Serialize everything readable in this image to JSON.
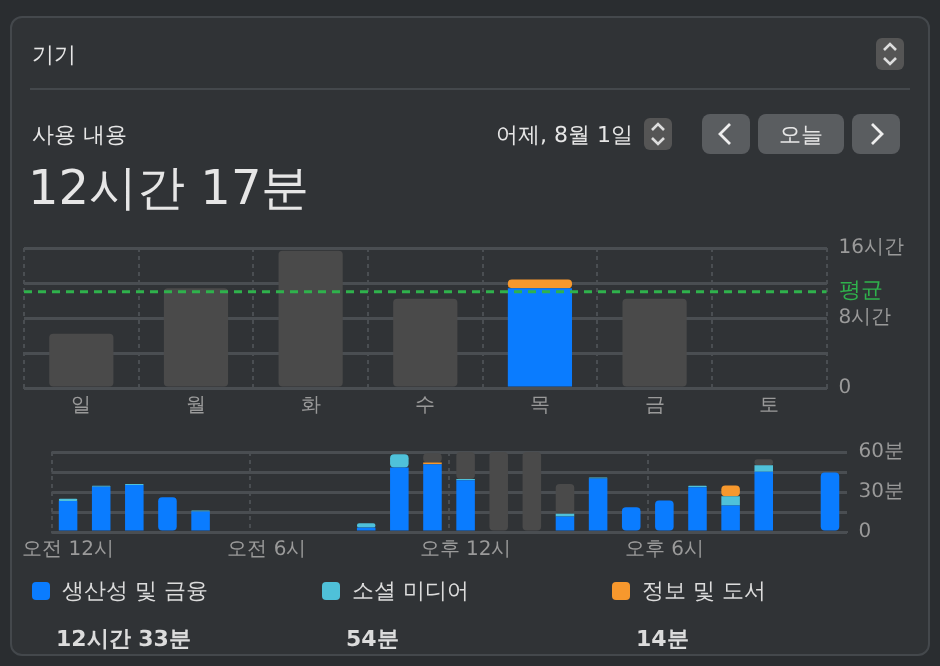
{
  "chart_data": [
    {
      "type": "bar",
      "title": "사용 내용",
      "subtitle": "12시간 17분",
      "annotations": [
        "기기",
        "어제, 8월 1일",
        "오늘"
      ],
      "categories": [
        "일",
        "월",
        "화",
        "수",
        "목",
        "금",
        "토"
      ],
      "stacked": true,
      "grid": true,
      "legend": false,
      "series": [
        {
          "color": "#4a4a4a",
          "values": [
            6.2,
            11.4,
            15.7,
            10.2,
            null,
            10.2,
            null
          ]
        },
        {
          "color": "#0a7cff",
          "values": [
            null,
            null,
            null,
            null,
            11.4,
            null,
            null
          ]
        },
        {
          "color": "#f7982d",
          "values": [
            null,
            null,
            null,
            null,
            1.0,
            null,
            null
          ]
        }
      ],
      "ylim": [
        0,
        16
      ],
      "yticks": [
        0,
        {
          "value": 4,
          "label": null
        },
        {
          "value": 8,
          "label": "8시간"
        },
        {
          "value": 12,
          "label": null
        },
        {
          "value": 16,
          "label": "16시간"
        }
      ],
      "ref_lines": [
        {
          "axis": "y",
          "value": 11,
          "label": "평균",
          "color": "#2fb24c",
          "line_style": "dashed"
        }
      ]
    },
    {
      "type": "bar",
      "categories": [
        "오전 12시",
        null,
        null,
        null,
        null,
        null,
        "오전 6시",
        null,
        null,
        null,
        null,
        null,
        "오후 12시",
        null,
        null,
        null,
        null,
        null,
        "오후 6시",
        null,
        null,
        null,
        null,
        null
      ],
      "stacked": true,
      "grid": true,
      "legend": "bottom",
      "annotations": [
        "12시간 33분",
        "54분",
        "14분"
      ],
      "series": [
        {
          "name": "생산성 및 금융",
          "color": "#0a7cff",
          "values": [
            23.2,
            33.9,
            35.2,
            26.1,
            15.3,
            null,
            null,
            null,
            null,
            3.3,
            48.4,
            50.9,
            38.9,
            null,
            null,
            11.6,
            40.1,
            18.6,
            23.6,
            33.5,
            19.9,
            45.1,
            null,
            44.7
          ]
        },
        {
          "name": "소셜 미디어",
          "color": "#4fc1d9",
          "values": [
            1.7,
            0.8,
            0.8,
            null,
            0.8,
            null,
            null,
            null,
            null,
            3.3,
            9.9,
            null,
            0.8,
            null,
            null,
            2.1,
            0.8,
            null,
            null,
            1.2,
            7.0,
            5.0,
            null,
            null
          ]
        },
        {
          "name": "정보 및 도서",
          "color": "#f7982d",
          "values": [
            null,
            null,
            null,
            null,
            null,
            null,
            null,
            null,
            null,
            null,
            null,
            1.2,
            null,
            null,
            null,
            null,
            null,
            null,
            null,
            null,
            7.9,
            null,
            null,
            null
          ]
        },
        {
          "color": "#4a4a4a",
          "values": [
            null,
            null,
            null,
            null,
            null,
            null,
            null,
            null,
            null,
            null,
            null,
            7.0,
            20.3,
            60,
            60,
            22.3,
            null,
            null,
            null,
            null,
            null,
            4.5,
            null,
            null
          ]
        }
      ],
      "ylim": [
        0,
        60
      ],
      "yticks": [
        0,
        {
          "value": 15,
          "label": null
        },
        {
          "value": 30,
          "label": "30분"
        },
        {
          "value": 45,
          "label": null
        },
        {
          "value": 60,
          "label": "60분"
        }
      ]
    }
  ]
}
